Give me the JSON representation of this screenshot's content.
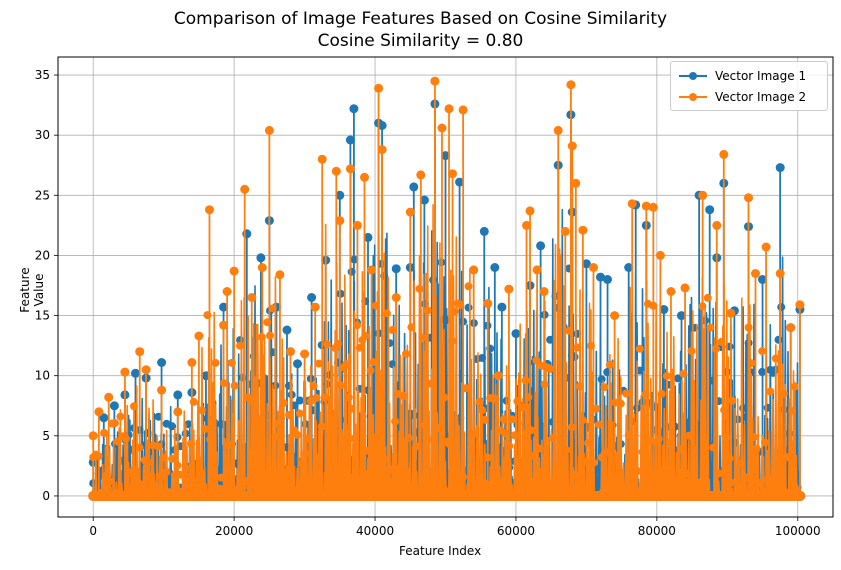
{
  "chart_data": {
    "type": "line",
    "title": "Comparison of Image Features Based on Cosine Similarity",
    "subtitle": "Cosine Similarity = 0.80",
    "xlabel": "Feature Index",
    "ylabel": "Feature Value",
    "xlim": [
      -5000,
      105000
    ],
    "ylim": [
      -1.75,
      36.5
    ],
    "x_ticks": [
      0,
      20000,
      40000,
      60000,
      80000,
      100000
    ],
    "y_ticks": [
      0,
      5,
      10,
      15,
      20,
      25,
      30,
      35
    ],
    "grid": true,
    "legend_position": "top-right",
    "n_features": 100352,
    "series": [
      {
        "name": "Vector Image 1",
        "color": "#1f77b4",
        "marker": "circle",
        "envelope_peaks": [
          {
            "x": 0,
            "y": 2.8
          },
          {
            "x": 1500,
            "y": 6.5
          },
          {
            "x": 3000,
            "y": 7.5
          },
          {
            "x": 4500,
            "y": 8.4
          },
          {
            "x": 6000,
            "y": 10.2
          },
          {
            "x": 7500,
            "y": 9.8
          },
          {
            "x": 9700,
            "y": 11.1
          },
          {
            "x": 12000,
            "y": 8.4
          },
          {
            "x": 14000,
            "y": 8.6
          },
          {
            "x": 16000,
            "y": 10.0
          },
          {
            "x": 18500,
            "y": 15.7
          },
          {
            "x": 21800,
            "y": 21.8
          },
          {
            "x": 23800,
            "y": 19.8
          },
          {
            "x": 25000,
            "y": 22.9
          },
          {
            "x": 26000,
            "y": 15.7
          },
          {
            "x": 27500,
            "y": 13.8
          },
          {
            "x": 29000,
            "y": 11.0
          },
          {
            "x": 31000,
            "y": 16.5
          },
          {
            "x": 33000,
            "y": 19.6
          },
          {
            "x": 35000,
            "y": 25.0
          },
          {
            "x": 36500,
            "y": 29.6
          },
          {
            "x": 37000,
            "y": 32.2
          },
          {
            "x": 39000,
            "y": 21.5
          },
          {
            "x": 40500,
            "y": 31.0
          },
          {
            "x": 41000,
            "y": 30.8
          },
          {
            "x": 43000,
            "y": 18.9
          },
          {
            "x": 45000,
            "y": 19.0
          },
          {
            "x": 45500,
            "y": 25.7
          },
          {
            "x": 47000,
            "y": 24.6
          },
          {
            "x": 48500,
            "y": 32.6
          },
          {
            "x": 50000,
            "y": 28.3
          },
          {
            "x": 52000,
            "y": 26.1
          },
          {
            "x": 55500,
            "y": 22.0
          },
          {
            "x": 57000,
            "y": 19.0
          },
          {
            "x": 58000,
            "y": 15.7
          },
          {
            "x": 60000,
            "y": 13.5
          },
          {
            "x": 62000,
            "y": 17.5
          },
          {
            "x": 63500,
            "y": 20.8
          },
          {
            "x": 66000,
            "y": 27.5
          },
          {
            "x": 67800,
            "y": 31.7
          },
          {
            "x": 68000,
            "y": 23.6
          },
          {
            "x": 70000,
            "y": 19.3
          },
          {
            "x": 72000,
            "y": 18.2
          },
          {
            "x": 73000,
            "y": 18.0
          },
          {
            "x": 76000,
            "y": 19.0
          },
          {
            "x": 77000,
            "y": 24.2
          },
          {
            "x": 78500,
            "y": 22.5
          },
          {
            "x": 81000,
            "y": 15.5
          },
          {
            "x": 83500,
            "y": 15.0
          },
          {
            "x": 86000,
            "y": 25.0
          },
          {
            "x": 87500,
            "y": 23.8
          },
          {
            "x": 88500,
            "y": 19.8
          },
          {
            "x": 89500,
            "y": 26.0
          },
          {
            "x": 91000,
            "y": 15.4
          },
          {
            "x": 93000,
            "y": 22.4
          },
          {
            "x": 95000,
            "y": 18.0
          },
          {
            "x": 97500,
            "y": 27.3
          },
          {
            "x": 99000,
            "y": 14.0
          },
          {
            "x": 100300,
            "y": 15.5
          }
        ]
      },
      {
        "name": "Vector Image 2",
        "color": "#ff7f0e",
        "marker": "circle",
        "envelope_peaks": [
          {
            "x": 0,
            "y": 5.0
          },
          {
            "x": 800,
            "y": 7.0
          },
          {
            "x": 2200,
            "y": 8.2
          },
          {
            "x": 4500,
            "y": 10.3
          },
          {
            "x": 6600,
            "y": 12.0
          },
          {
            "x": 7500,
            "y": 10.5
          },
          {
            "x": 9700,
            "y": 8.8
          },
          {
            "x": 12000,
            "y": 7.0
          },
          {
            "x": 14000,
            "y": 11.1
          },
          {
            "x": 15000,
            "y": 13.3
          },
          {
            "x": 16500,
            "y": 23.8
          },
          {
            "x": 18500,
            "y": 14.2
          },
          {
            "x": 19000,
            "y": 17.0
          },
          {
            "x": 20000,
            "y": 18.7
          },
          {
            "x": 21500,
            "y": 25.5
          },
          {
            "x": 22500,
            "y": 16.5
          },
          {
            "x": 24000,
            "y": 19.0
          },
          {
            "x": 25000,
            "y": 30.4
          },
          {
            "x": 26500,
            "y": 18.4
          },
          {
            "x": 28000,
            "y": 12.0
          },
          {
            "x": 30000,
            "y": 11.8
          },
          {
            "x": 31500,
            "y": 15.7
          },
          {
            "x": 32500,
            "y": 28.0
          },
          {
            "x": 34500,
            "y": 27.0
          },
          {
            "x": 35000,
            "y": 22.9
          },
          {
            "x": 36500,
            "y": 27.2
          },
          {
            "x": 37500,
            "y": 22.5
          },
          {
            "x": 38500,
            "y": 26.5
          },
          {
            "x": 39500,
            "y": 18.8
          },
          {
            "x": 40500,
            "y": 33.9
          },
          {
            "x": 41000,
            "y": 28.8
          },
          {
            "x": 43000,
            "y": 16.5
          },
          {
            "x": 45000,
            "y": 23.6
          },
          {
            "x": 46500,
            "y": 26.7
          },
          {
            "x": 48500,
            "y": 34.5
          },
          {
            "x": 49500,
            "y": 30.6
          },
          {
            "x": 50500,
            "y": 32.2
          },
          {
            "x": 51000,
            "y": 26.8
          },
          {
            "x": 52500,
            "y": 32.1
          },
          {
            "x": 54000,
            "y": 18.8
          },
          {
            "x": 56000,
            "y": 16.0
          },
          {
            "x": 57500,
            "y": 10.0
          },
          {
            "x": 59000,
            "y": 17.2
          },
          {
            "x": 61500,
            "y": 22.5
          },
          {
            "x": 62000,
            "y": 23.7
          },
          {
            "x": 63000,
            "y": 18.8
          },
          {
            "x": 64000,
            "y": 17.0
          },
          {
            "x": 66000,
            "y": 30.4
          },
          {
            "x": 67000,
            "y": 22.0
          },
          {
            "x": 67800,
            "y": 34.2
          },
          {
            "x": 68000,
            "y": 29.1
          },
          {
            "x": 68500,
            "y": 26.0
          },
          {
            "x": 69500,
            "y": 22.1
          },
          {
            "x": 71000,
            "y": 19.0
          },
          {
            "x": 74000,
            "y": 15.0
          },
          {
            "x": 76500,
            "y": 24.3
          },
          {
            "x": 78500,
            "y": 24.1
          },
          {
            "x": 79500,
            "y": 24.0
          },
          {
            "x": 80500,
            "y": 20.0
          },
          {
            "x": 82000,
            "y": 17.0
          },
          {
            "x": 84000,
            "y": 17.3
          },
          {
            "x": 86500,
            "y": 25.0
          },
          {
            "x": 88500,
            "y": 22.5
          },
          {
            "x": 89500,
            "y": 28.4
          },
          {
            "x": 90500,
            "y": 15.2
          },
          {
            "x": 93000,
            "y": 24.8
          },
          {
            "x": 94000,
            "y": 18.5
          },
          {
            "x": 95500,
            "y": 20.7
          },
          {
            "x": 97500,
            "y": 18.5
          },
          {
            "x": 99000,
            "y": 14.0
          },
          {
            "x": 100300,
            "y": 15.9
          }
        ]
      }
    ]
  }
}
